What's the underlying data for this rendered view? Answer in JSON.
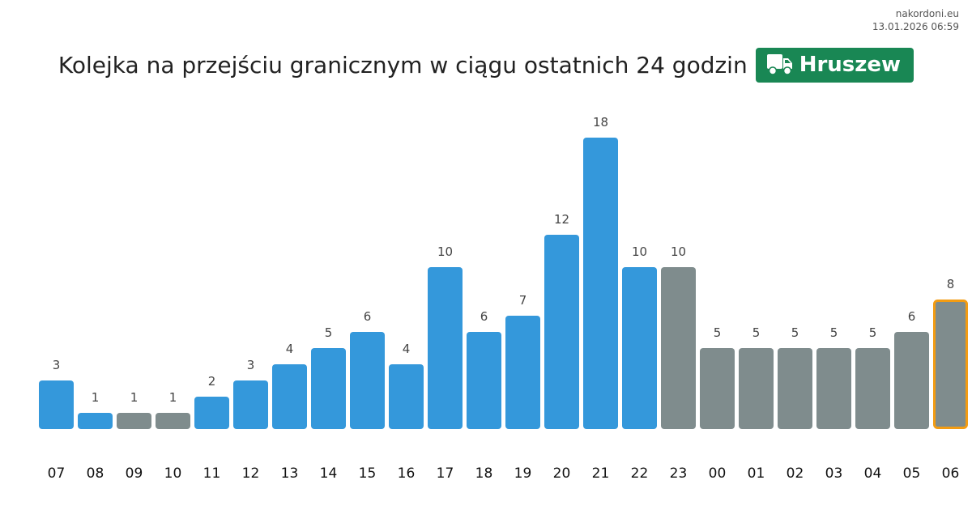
{
  "source": {
    "site": "nakordoni.eu",
    "timestamp": "13.01.2026 06:59"
  },
  "title": "Kolejka na przejściu granicznym w ciągu ostatnich 24 godzin",
  "badge": {
    "label": "Hruszew",
    "icon": "truck-icon",
    "color": "#198754"
  },
  "colors": {
    "past": "#3498db",
    "forecast": "#7f8c8d",
    "current_outline": "#f39c12"
  },
  "chart_data": {
    "type": "bar",
    "title": "Kolejka na przejściu granicznym w ciągu ostatnich 24 godzin",
    "xlabel": "",
    "ylabel": "",
    "categories": [
      "07",
      "08",
      "09",
      "10",
      "11",
      "12",
      "13",
      "14",
      "15",
      "16",
      "17",
      "18",
      "19",
      "20",
      "21",
      "22",
      "23",
      "00",
      "01",
      "02",
      "03",
      "04",
      "05",
      "06"
    ],
    "values": [
      3,
      1,
      1,
      1,
      2,
      3,
      4,
      5,
      6,
      4,
      10,
      6,
      7,
      12,
      18,
      10,
      10,
      5,
      5,
      5,
      5,
      5,
      6,
      8
    ],
    "bar_colors": [
      "past",
      "past",
      "forecast",
      "forecast",
      "past",
      "past",
      "past",
      "past",
      "past",
      "past",
      "past",
      "past",
      "past",
      "past",
      "past",
      "past",
      "forecast",
      "forecast",
      "forecast",
      "forecast",
      "forecast",
      "forecast",
      "forecast",
      "forecast"
    ],
    "highlighted_index": 23,
    "ylim": [
      0,
      18
    ],
    "grid": false,
    "legend": "none"
  }
}
